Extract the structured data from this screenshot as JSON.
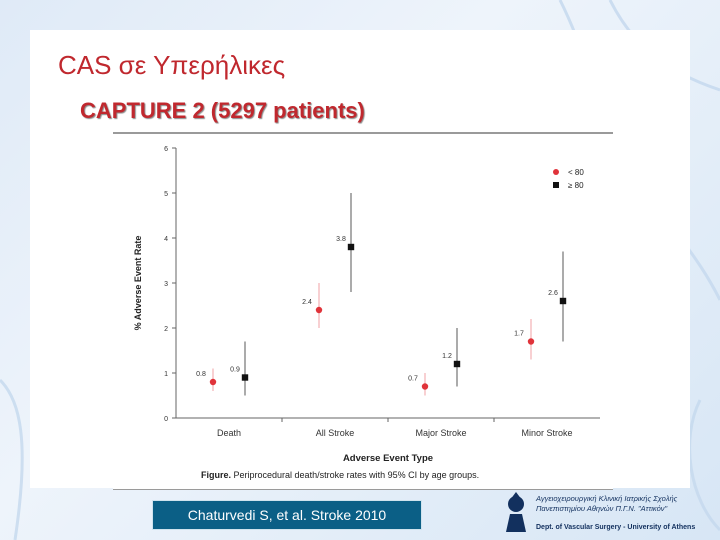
{
  "slide": {
    "title": "CAS σε Υπερήλικες",
    "subtitle": "CAPTURE 2 (5297 patients)",
    "citation": "Chaturvedi S, et al. Stroke 2010"
  },
  "logo": {
    "line1": "Αγγειοχειρουργική Κλινική Ιατρικής Σχολής",
    "line2": "Πανεπιστημίου Αθηνών Π.Γ.Ν. \"Αττικόν\"",
    "dept": "Dept. of Vascular Surgery - University of Athens"
  },
  "chart_data": {
    "type": "scatter",
    "categories": [
      "Death",
      "All Stroke",
      "Major Stroke",
      "Minor Stroke"
    ],
    "ylim": [
      0,
      6
    ],
    "yticks": [
      "0",
      "1",
      "2",
      "3",
      "4",
      "5",
      "6"
    ],
    "xlabel": "Adverse Event Type",
    "ylabel": "% Adverse Event Rate",
    "caption_bold": "Figure.",
    "caption": "Periprocedural death/stroke rates with 95% CI by age groups.",
    "legend_position": "top-right",
    "series": [
      {
        "name": "< 80",
        "color": "#e0333a",
        "marker": "circle",
        "values": [
          0.8,
          2.4,
          0.7,
          1.7
        ],
        "labels": [
          "0.8",
          "2.4",
          "0.7",
          "1.7"
        ],
        "lower": [
          0.6,
          2.0,
          0.5,
          1.3
        ],
        "upper": [
          1.1,
          3.0,
          1.0,
          2.2
        ]
      },
      {
        "name": "≥ 80",
        "color": "#111111",
        "marker": "square",
        "values": [
          0.9,
          3.8,
          1.2,
          2.6
        ],
        "labels": [
          "0.9",
          "3.8",
          "1.2",
          "2.6"
        ],
        "lower": [
          0.5,
          2.8,
          0.7,
          1.7
        ],
        "upper": [
          1.7,
          5.0,
          2.0,
          3.7
        ]
      }
    ]
  }
}
